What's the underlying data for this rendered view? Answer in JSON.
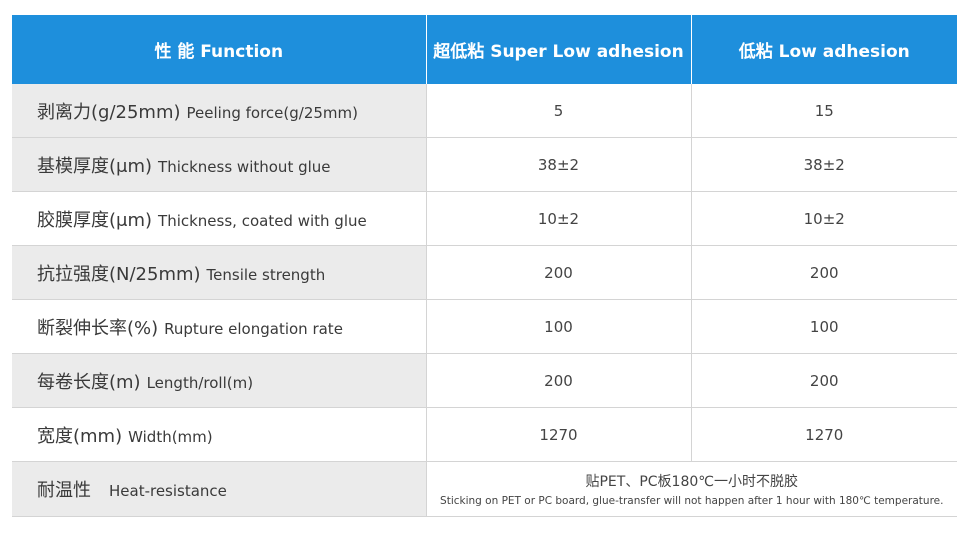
{
  "header": {
    "col1": "性 能  Function",
    "col2": "超低粘 Super Low adhesion",
    "col3": "低粘  Low adhesion"
  },
  "rows": [
    {
      "cn": "剥离力(g/25mm)",
      "en": "Peeling force(g/25mm)",
      "v1": "5",
      "v2": "15"
    },
    {
      "cn": "基模厚度(μm)",
      "en": "Thickness without glue",
      "v1": "38±2",
      "v2": "38±2"
    },
    {
      "cn": "胶膜厚度(μm)",
      "en": "Thickness, coated with glue",
      "v1": "10±2",
      "v2": "10±2"
    },
    {
      "cn": "抗拉强度(N/25mm)",
      "en": "Tensile strength",
      "v1": "200",
      "v2": "200"
    },
    {
      "cn": "断裂伸长率(%)",
      "en": "Rupture elongation rate",
      "v1": "100",
      "v2": "100"
    },
    {
      "cn": "每卷长度(m)",
      "en": "Length/roll(m)",
      "v1": "200",
      "v2": "200"
    },
    {
      "cn": "宽度(mm)",
      "en": "Width(mm)",
      "v1": "1270",
      "v2": "1270"
    }
  ],
  "heat": {
    "cn": "耐温性",
    "en": "Heat-resistance",
    "value_cn": "贴PET、PC板180℃一小时不脱胶",
    "value_en": "Sticking on PET or PC board, glue-transfer will not happen after 1 hour with 180℃ temperature."
  },
  "colors": {
    "header_bg": "#1e8fdc",
    "label_bg": "#ebebeb",
    "border": "#d4d4d4"
  }
}
